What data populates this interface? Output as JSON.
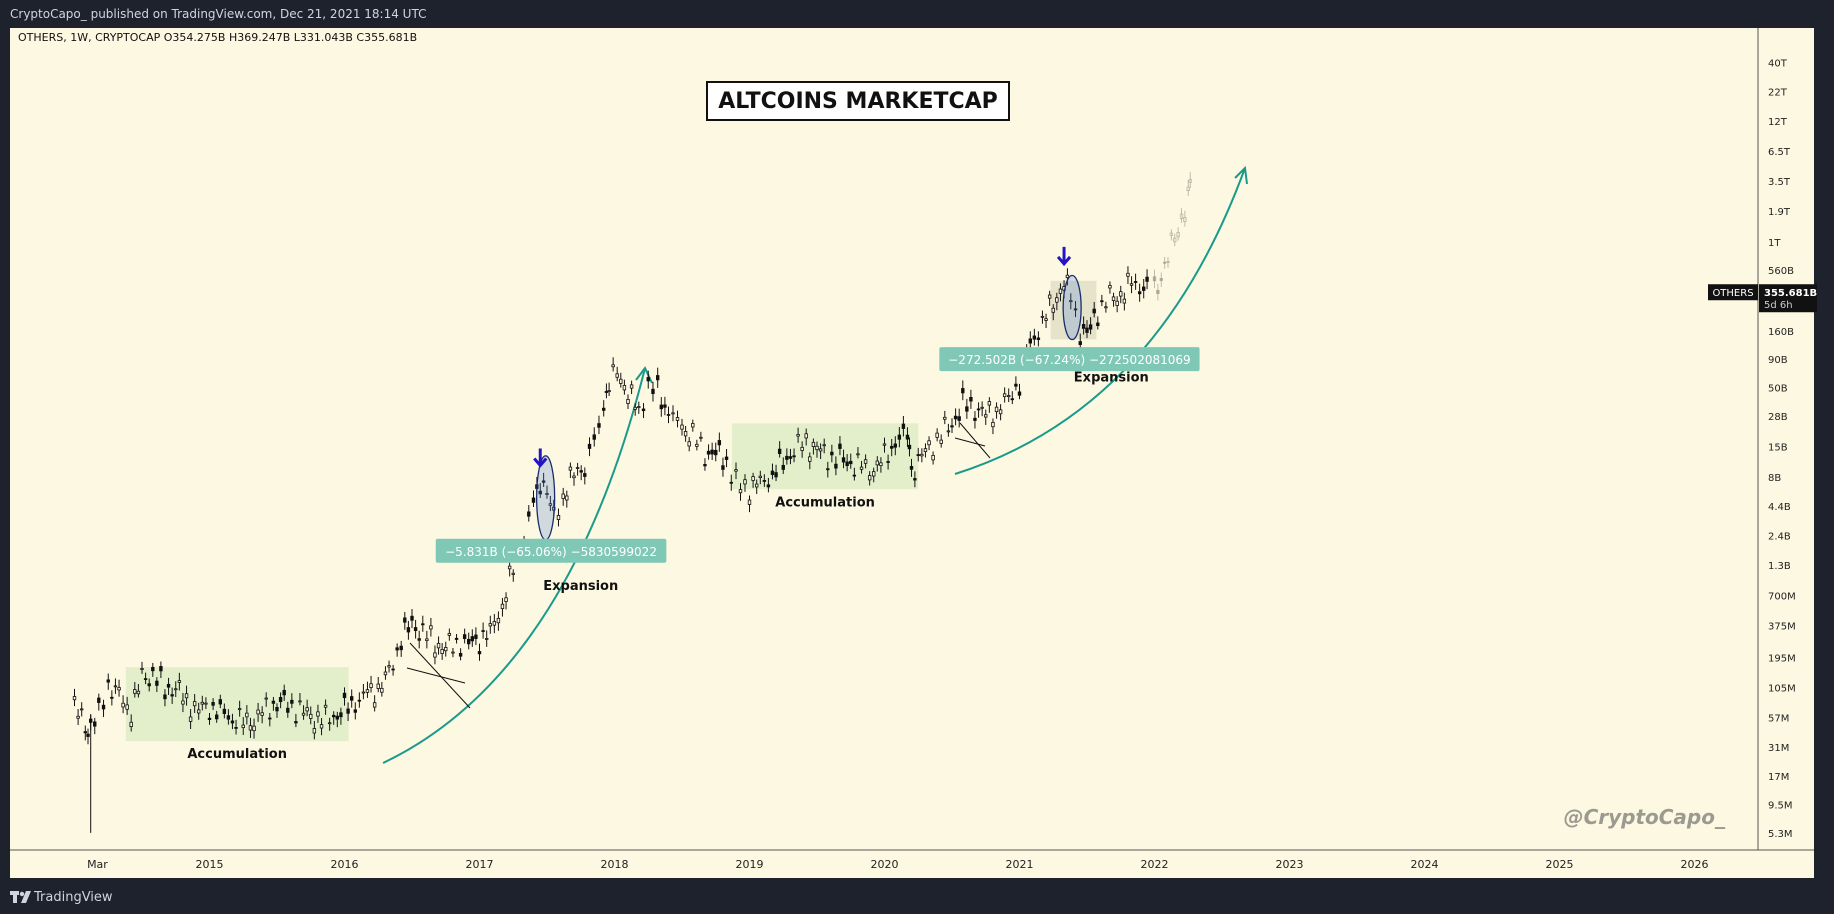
{
  "header": {
    "published_text": "CryptoCapo_ published on TradingView.com, Dec 21, 2021 18:14 UTC"
  },
  "footer": {
    "brand_label": "TradingView"
  },
  "chart_data": {
    "type": "candlestick",
    "symbol_line": "OTHERS, 1W, CRYPTOCAP  O354.275B  H369.247B  L331.043B  C355.681B",
    "title": "ALTCOINS MARKETCAP",
    "watermark": "@CryptoCapo_",
    "scale": "log",
    "background_color": "#fdf8e1",
    "y_ticks": [
      {
        "label": "40T",
        "value": 40000000000000.0
      },
      {
        "label": "22T",
        "value": 22000000000000.0
      },
      {
        "label": "12T",
        "value": 12000000000000.0
      },
      {
        "label": "6.5T",
        "value": 6500000000000.0
      },
      {
        "label": "3.5T",
        "value": 3500000000000.0
      },
      {
        "label": "1.9T",
        "value": 1900000000000.0
      },
      {
        "label": "1T",
        "value": 1000000000000.0
      },
      {
        "label": "560B",
        "value": 560000000000.0
      },
      {
        "label": "160B",
        "value": 160000000000.0
      },
      {
        "label": "90B",
        "value": 90000000000.0
      },
      {
        "label": "50B",
        "value": 50000000000.0
      },
      {
        "label": "28B",
        "value": 28000000000.0
      },
      {
        "label": "15B",
        "value": 15000000000.0
      },
      {
        "label": "8B",
        "value": 8000000000.0
      },
      {
        "label": "4.4B",
        "value": 4400000000.0
      },
      {
        "label": "2.4B",
        "value": 2400000000.0
      },
      {
        "label": "1.3B",
        "value": 1300000000.0
      },
      {
        "label": "700M",
        "value": 700000000.0
      },
      {
        "label": "375M",
        "value": 375000000.0
      },
      {
        "label": "195M",
        "value": 195000000.0
      },
      {
        "label": "105M",
        "value": 105000000.0
      },
      {
        "label": "57M",
        "value": 57000000.0
      },
      {
        "label": "31M",
        "value": 31000000.0
      },
      {
        "label": "17M",
        "value": 17000000.0
      },
      {
        "label": "9.5M",
        "value": 9500000.0
      },
      {
        "label": "5.3M",
        "value": 5300000.0
      }
    ],
    "x_ticks": [
      {
        "label": "Mar",
        "t": 2014.17
      },
      {
        "label": "2015",
        "t": 2015.0
      },
      {
        "label": "2016",
        "t": 2016.0
      },
      {
        "label": "2017",
        "t": 2017.0
      },
      {
        "label": "2018",
        "t": 2018.0
      },
      {
        "label": "2019",
        "t": 2019.0
      },
      {
        "label": "2020",
        "t": 2020.0
      },
      {
        "label": "2021",
        "t": 2021.0
      },
      {
        "label": "2022",
        "t": 2022.0
      },
      {
        "label": "2023",
        "t": 2023.0
      },
      {
        "label": "2024",
        "t": 2024.0
      },
      {
        "label": "2025",
        "t": 2025.0
      },
      {
        "label": "2026",
        "t": 2026.0
      }
    ],
    "series": [
      {
        "kind": "historical",
        "values": [
          [
            2014.0,
            70000000.0
          ],
          [
            2014.08,
            50000000.0
          ],
          [
            2014.12,
            46000000.0
          ],
          [
            2014.18,
            60000000.0
          ],
          [
            2014.25,
            110000000.0
          ],
          [
            2014.33,
            90000000.0
          ],
          [
            2014.42,
            65000000.0
          ],
          [
            2014.5,
            130000000.0
          ],
          [
            2014.58,
            135000000.0
          ],
          [
            2014.67,
            100000000.0
          ],
          [
            2014.75,
            105000000.0
          ],
          [
            2014.83,
            80000000.0
          ],
          [
            2014.92,
            68000000.0
          ],
          [
            2015.0,
            70000000.0
          ],
          [
            2015.08,
            62000000.0
          ],
          [
            2015.17,
            55000000.0
          ],
          [
            2015.25,
            52000000.0
          ],
          [
            2015.33,
            56000000.0
          ],
          [
            2015.42,
            68000000.0
          ],
          [
            2015.5,
            75000000.0
          ],
          [
            2015.58,
            72000000.0
          ],
          [
            2015.67,
            65000000.0
          ],
          [
            2015.75,
            60000000.0
          ],
          [
            2015.83,
            55000000.0
          ],
          [
            2015.92,
            58000000.0
          ],
          [
            2016.0,
            65000000.0
          ],
          [
            2016.08,
            76000000.0
          ],
          [
            2016.17,
            95000000.0
          ],
          [
            2016.25,
            105000000.0
          ],
          [
            2016.33,
            140000000.0
          ],
          [
            2016.42,
            280000000.0
          ],
          [
            2016.5,
            380000000.0
          ],
          [
            2016.58,
            330000000.0
          ],
          [
            2016.67,
            270000000.0
          ],
          [
            2016.75,
            240000000.0
          ],
          [
            2016.83,
            260000000.0
          ],
          [
            2016.92,
            250000000.0
          ],
          [
            2017.0,
            280000000.0
          ],
          [
            2017.08,
            330000000.0
          ],
          [
            2017.17,
            600000000.0
          ],
          [
            2017.25,
            1200000000.0
          ],
          [
            2017.33,
            2300000000.0
          ],
          [
            2017.4,
            4300000000.0
          ],
          [
            2017.45,
            7500000000.0
          ],
          [
            2017.5,
            6000000000.0
          ],
          [
            2017.55,
            3300000000.0
          ],
          [
            2017.62,
            5700000000.0
          ],
          [
            2017.7,
            8500000000.0
          ],
          [
            2017.78,
            10000000000.0
          ],
          [
            2017.85,
            16000000000.0
          ],
          [
            2017.92,
            33000000000.0
          ],
          [
            2017.96,
            55000000000.0
          ],
          [
            2018.02,
            70000000000.0
          ],
          [
            2018.1,
            48000000000.0
          ],
          [
            2018.18,
            30000000000.0
          ],
          [
            2018.25,
            52000000000.0
          ],
          [
            2018.32,
            45000000000.0
          ],
          [
            2018.4,
            30000000000.0
          ],
          [
            2018.5,
            23000000000.0
          ],
          [
            2018.58,
            19000000000.0
          ],
          [
            2018.67,
            13000000000.0
          ],
          [
            2018.75,
            12500000000.0
          ],
          [
            2018.83,
            11000000000.0
          ],
          [
            2018.9,
            7000000000.0
          ],
          [
            2019.0,
            6600000000.0
          ],
          [
            2019.08,
            7200000000.0
          ],
          [
            2019.17,
            8000000000.0
          ],
          [
            2019.25,
            10500000000.0
          ],
          [
            2019.33,
            14000000000.0
          ],
          [
            2019.42,
            17000000000.0
          ],
          [
            2019.5,
            14500000000.0
          ],
          [
            2019.58,
            12000000000.0
          ],
          [
            2019.67,
            11000000000.0
          ],
          [
            2019.75,
            10500000000.0
          ],
          [
            2019.83,
            10000000000.0
          ],
          [
            2019.92,
            9500000000.0
          ],
          [
            2020.0,
            12000000000.0
          ],
          [
            2020.08,
            16000000000.0
          ],
          [
            2020.17,
            19000000000.0
          ],
          [
            2020.2,
            9000000000.0
          ],
          [
            2020.25,
            11000000000.0
          ],
          [
            2020.33,
            15000000000.0
          ],
          [
            2020.42,
            19000000000.0
          ],
          [
            2020.5,
            24000000000.0
          ],
          [
            2020.58,
            34000000000.0
          ],
          [
            2020.67,
            33000000000.0
          ],
          [
            2020.75,
            29000000000.0
          ],
          [
            2020.83,
            33000000000.0
          ],
          [
            2020.92,
            40000000000.0
          ],
          [
            2021.0,
            55000000000.0
          ],
          [
            2021.08,
            120000000000.0
          ],
          [
            2021.17,
            190000000000.0
          ],
          [
            2021.25,
            300000000000.0
          ],
          [
            2021.33,
            440000000000.0
          ],
          [
            2021.38,
            320000000000.0
          ],
          [
            2021.45,
            160000000000.0
          ],
          [
            2021.5,
            140000000000.0
          ],
          [
            2021.58,
            240000000000.0
          ],
          [
            2021.67,
            320000000000.0
          ],
          [
            2021.75,
            350000000000.0
          ],
          [
            2021.83,
            430000000000.0
          ],
          [
            2021.92,
            390000000000.0
          ],
          [
            2021.97,
            356000000000.0
          ]
        ]
      },
      {
        "kind": "projection",
        "values": [
          [
            2022.0,
            360000000000.0
          ],
          [
            2022.05,
            500000000000.0
          ],
          [
            2022.1,
            750000000000.0
          ],
          [
            2022.15,
            1100000000000.0
          ],
          [
            2022.2,
            1700000000000.0
          ],
          [
            2022.25,
            2600000000000.0
          ],
          [
            2022.28,
            3000000000000.0
          ]
        ]
      }
    ],
    "zones": [
      {
        "label": "Accumulation",
        "t0": 2014.38,
        "t1": 2016.03,
        "hi": 160000000.0,
        "lo": 35000000.0
      },
      {
        "label": "Accumulation",
        "t0": 2018.87,
        "t1": 2020.25,
        "hi": 24000000000.0,
        "lo": 6200000000.0
      },
      {
        "t0": 2021.23,
        "t1": 2021.57,
        "hi": 450000000000.0,
        "lo": 135000000000.0
      }
    ],
    "annotations": [
      {
        "text": "Expansion",
        "t": 2017.75,
        "v": 780000000.0
      },
      {
        "text": "Expansion",
        "t": 2021.68,
        "v": 57000000000.0
      }
    ],
    "measure_labels": [
      {
        "text": "−5.831B (−65.06%) −5830599022",
        "t": 2017.53,
        "v": 1750000000.0
      },
      {
        "text": "−272.502B (−67.24%) −272502081069",
        "t": 2021.37,
        "v": 90000000000.0
      }
    ],
    "arrows": [
      {
        "t": 2017.45,
        "v": 9500000000.0
      },
      {
        "t": 2021.33,
        "v": 600000000000.0
      }
    ],
    "price_badge": {
      "name": "OTHERS",
      "value": "355.681B",
      "countdown": "5d 6h"
    }
  }
}
